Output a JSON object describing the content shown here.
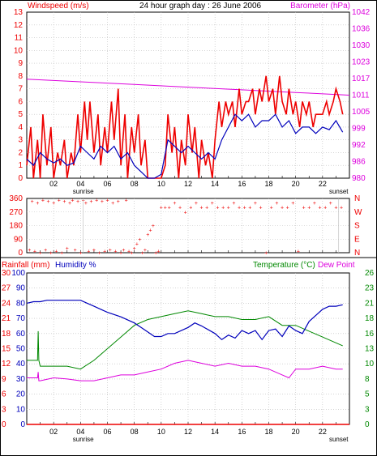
{
  "title": "24 hour graph day : 26 June 2006",
  "colors": {
    "red": "#ee0000",
    "blue": "#0000bb",
    "magenta": "#dd00dd",
    "green": "#008800",
    "grid": "#bbbbbb",
    "frame": "#000000"
  },
  "hour_labels": [
    "02",
    "04",
    "06",
    "08",
    "10",
    "12",
    "14",
    "16",
    "18",
    "20",
    "22"
  ],
  "sunrise_label": "sunrise",
  "sunset_label": "sunset",
  "chart_data": [
    {
      "type": "line",
      "title": "24 hour graph day : 26 June 2006",
      "left_axis_label": "Windspeed (m/s)",
      "right_axis_label": "Barometer (hPa)",
      "xlim": [
        0,
        24
      ],
      "ylim": [
        0,
        13
      ],
      "left_ticks": [
        "0",
        "1",
        "2",
        "3",
        "4",
        "5",
        "6",
        "7",
        "8",
        "9",
        "10",
        "11",
        "12",
        "13"
      ],
      "right_ticks": [
        "980",
        "986",
        "992",
        "999",
        "1005",
        "1011",
        "1017",
        "1023",
        "1030",
        "1036",
        "1042"
      ],
      "right_ylim": [
        980,
        1042
      ],
      "series": [
        {
          "name": "Windspeed (m/s)",
          "color": "#ee0000",
          "x": [
            0,
            0.3,
            0.5,
            0.8,
            1,
            1.2,
            1.5,
            1.8,
            2,
            2.3,
            2.5,
            2.8,
            3,
            3.3,
            3.5,
            3.8,
            4,
            4.3,
            4.5,
            4.7,
            5,
            5.3,
            5.5,
            5.8,
            6,
            6.3,
            6.5,
            6.8,
            7,
            7.3,
            7.5,
            7.8,
            8,
            8.3,
            8.5,
            8.8,
            9,
            9.5,
            10,
            10.3,
            10.5,
            10.8,
            11,
            11.3,
            11.5,
            11.8,
            12,
            12.3,
            12.5,
            12.8,
            13,
            13.3,
            13.5,
            13.8,
            14,
            14.3,
            14.5,
            14.8,
            15,
            15.3,
            15.5,
            15.8,
            16,
            16.3,
            16.5,
            16.8,
            17,
            17.3,
            17.5,
            17.8,
            18,
            18.3,
            18.5,
            18.8,
            19,
            19.3,
            19.5,
            19.8,
            20,
            20.3,
            20.5,
            20.8,
            21,
            21.3,
            21.5,
            21.8,
            22,
            22.3,
            22.5,
            22.8,
            23,
            23.3,
            23.5
          ],
          "y": [
            1,
            4,
            0,
            3,
            0,
            5,
            1,
            4,
            0,
            2,
            1,
            3,
            0,
            2,
            1,
            5,
            2,
            6,
            3,
            6,
            2,
            5,
            1,
            4,
            2,
            6,
            3,
            7,
            1,
            5,
            0,
            4,
            2,
            5,
            1,
            3,
            0,
            0,
            0,
            1,
            5,
            2,
            4,
            0,
            3,
            1,
            5,
            2,
            4,
            0,
            3,
            1,
            2,
            0,
            3,
            6,
            4,
            6,
            5,
            6,
            4,
            7,
            5,
            6,
            6,
            7,
            5,
            7,
            6,
            8,
            6,
            7,
            5,
            8,
            6,
            5,
            7,
            5,
            6,
            4,
            6,
            5,
            6,
            4,
            5,
            5,
            5,
            6,
            5,
            6,
            7,
            6,
            5
          ],
          "note": ""
        },
        {
          "name": "Windspeed avg",
          "color": "#0000bb",
          "x": [
            0,
            0.5,
            1,
            1.5,
            2,
            2.5,
            3,
            3.5,
            4,
            4.5,
            5,
            5.5,
            6,
            6.5,
            7,
            7.5,
            8,
            8.5,
            9,
            9.5,
            10,
            10.5,
            11,
            11.5,
            12,
            12.5,
            13,
            13.5,
            14,
            14.5,
            15,
            15.5,
            16,
            16.5,
            17,
            17.5,
            18,
            18.5,
            19,
            19.5,
            20,
            20.5,
            21,
            21.5,
            22,
            22.5,
            23,
            23.5
          ],
          "y": [
            1.5,
            1,
            2,
            1.5,
            1.2,
            1.5,
            1,
            1.2,
            2.5,
            2,
            1.5,
            2.5,
            2,
            2.5,
            1.5,
            2,
            1,
            0.5,
            0,
            0,
            0.3,
            3,
            2.5,
            2,
            2.5,
            2,
            1.5,
            2,
            1.5,
            3,
            4,
            5,
            4.5,
            5,
            4,
            4.5,
            4.5,
            5,
            4,
            4.5,
            3.5,
            4,
            4,
            3.5,
            4,
            3.8,
            4.5,
            3.6
          ]
        },
        {
          "name": "Barometer (hPa)",
          "color": "#dd00dd",
          "axis": "right",
          "x": [
            0,
            4,
            8,
            12,
            16,
            20,
            24
          ],
          "y": [
            1017,
            1016,
            1015,
            1014,
            1013,
            1012,
            1011
          ]
        }
      ]
    },
    {
      "type": "scatter",
      "title": "",
      "left_ticks": [
        "0",
        "90",
        "180",
        "270",
        "360"
      ],
      "right_ticks": [
        "N",
        "E",
        "S",
        "W",
        "N"
      ],
      "ylim": [
        0,
        360
      ],
      "xlim": [
        0,
        24
      ],
      "series": [
        {
          "name": "Wind direction",
          "color": "#ee0000",
          "x": [
            0.2,
            0.4,
            0.6,
            0.8,
            1,
            1.2,
            1.4,
            1.6,
            1.8,
            2,
            2.2,
            2.4,
            2.6,
            2.8,
            3,
            3.2,
            3.4,
            3.6,
            3.8,
            4,
            4.2,
            4.4,
            4.6,
            4.8,
            5,
            5.2,
            5.4,
            5.6,
            5.8,
            6,
            6.2,
            6.4,
            6.6,
            6.8,
            7,
            7.2,
            7.4,
            7.6,
            7.8,
            8,
            8.2,
            8.4,
            8.6,
            8.8,
            9,
            9.2,
            9.4,
            9.6,
            9.8,
            10,
            10.3,
            10.6,
            11,
            11.4,
            11.8,
            12.2,
            12.6,
            13,
            13.4,
            13.8,
            14.2,
            14.6,
            15,
            15.4,
            15.8,
            16.2,
            16.6,
            17,
            17.4,
            17.8,
            18.2,
            18.6,
            19,
            19.4,
            19.8,
            20.2,
            20.6,
            21,
            21.4,
            21.8,
            22.2,
            22.6,
            23,
            23.4
          ],
          "y": [
            20,
            340,
            10,
            330,
            0,
            350,
            20,
            340,
            0,
            330,
            10,
            350,
            0,
            340,
            30,
            330,
            350,
            20,
            340,
            0,
            350,
            330,
            10,
            340,
            20,
            350,
            0,
            340,
            10,
            350,
            20,
            330,
            10,
            340,
            0,
            20,
            350,
            10,
            0,
            30,
            60,
            90,
            0,
            20,
            120,
            150,
            180,
            0,
            10,
            300,
            300,
            300,
            330,
            300,
            270,
            300,
            330,
            300,
            300,
            330,
            300,
            300,
            300,
            330,
            300,
            300,
            300,
            330,
            300,
            0,
            300,
            330,
            300,
            300,
            330,
            10,
            300,
            300,
            330,
            300,
            300,
            330,
            300,
            300
          ]
        }
      ]
    },
    {
      "type": "line",
      "title": "",
      "left_axis_label_1": "Rainfall (mm)",
      "left_axis_label_2": "Humidity %",
      "right_axis_label_1": "Temperature (°C)",
      "right_axis_label_2": "Dew Point",
      "xlim": [
        0,
        24
      ],
      "rain_ticks": [
        "0",
        "3",
        "6",
        "9",
        "12",
        "15",
        "18",
        "21",
        "24",
        "27",
        "30"
      ],
      "humidity_ticks": [
        "0",
        "10",
        "20",
        "30",
        "40",
        "50",
        "60",
        "70",
        "80",
        "90",
        "100"
      ],
      "temp_ticks": [
        "0",
        "3",
        "5",
        "8",
        "10",
        "13",
        "16",
        "18",
        "21",
        "23",
        "26"
      ],
      "temp_ylim": [
        0,
        26
      ],
      "series": [
        {
          "name": "Humidity %",
          "color": "#0000bb",
          "x": [
            0,
            0.5,
            0.9,
            1,
            1.5,
            2,
            3,
            4,
            4.5,
            5,
            6,
            7,
            8,
            8.5,
            9,
            9.5,
            10,
            10.5,
            11,
            12,
            12.5,
            13,
            14,
            14.5,
            15,
            15.5,
            16,
            16.5,
            17,
            17.5,
            18,
            18.5,
            19,
            19.5,
            20,
            20.5,
            21,
            21.5,
            22,
            22.5,
            23,
            23.5
          ],
          "y": [
            80,
            81,
            81,
            81,
            82,
            82,
            82,
            82,
            80,
            78,
            74,
            71,
            67,
            64,
            61,
            58,
            58,
            60,
            60,
            64,
            67,
            65,
            60,
            56,
            59,
            57,
            62,
            60,
            62,
            56,
            62,
            63,
            58,
            65,
            62,
            60,
            68,
            72,
            76,
            78,
            78,
            79
          ]
        },
        {
          "name": "Temperature (°C)",
          "color": "#008800",
          "axis": "temp",
          "x": [
            0,
            0.5,
            0.8,
            0.85,
            0.9,
            1,
            2,
            3,
            4,
            5,
            6,
            7,
            8,
            9,
            10,
            11,
            12,
            13,
            14,
            15,
            16,
            17,
            18,
            19,
            20,
            21,
            22,
            23,
            23.5
          ],
          "y": [
            11,
            11,
            11,
            16,
            11,
            10,
            10,
            10,
            9.5,
            11,
            13,
            15,
            17,
            18,
            18.5,
            19,
            19.5,
            19,
            18.5,
            18.5,
            18,
            18,
            18.5,
            17,
            17,
            16,
            15,
            14,
            13.5
          ]
        },
        {
          "name": "Dew Point",
          "color": "#dd00dd",
          "axis": "temp",
          "x": [
            0,
            0.5,
            0.8,
            0.85,
            0.9,
            1,
            2,
            3,
            4,
            5,
            6,
            7,
            8,
            9,
            10,
            11,
            12,
            13,
            14,
            15,
            16,
            17,
            18,
            19,
            19.5,
            20,
            21,
            22,
            23,
            23.5
          ],
          "y": [
            8,
            8,
            8,
            9,
            7.5,
            7.5,
            8,
            7.8,
            7.5,
            7.5,
            8,
            8.5,
            8.5,
            9,
            9.5,
            10.5,
            11,
            10.5,
            10,
            10.5,
            10,
            10,
            9.5,
            8.5,
            8,
            9.5,
            9.5,
            10,
            9.5,
            9.5
          ]
        },
        {
          "name": "Rainfall (mm)",
          "color": "#ee0000",
          "axis": "rain",
          "x": [
            0,
            24
          ],
          "y": [
            0,
            0
          ]
        }
      ]
    }
  ]
}
